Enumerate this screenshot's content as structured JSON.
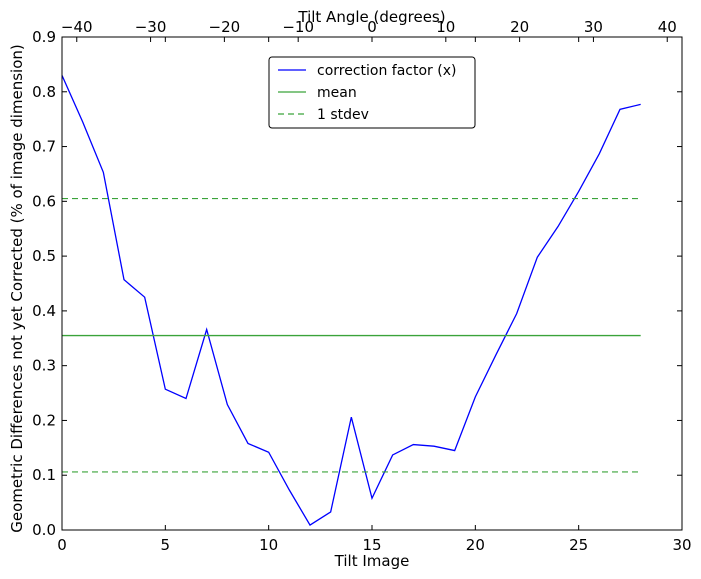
{
  "chart_data": {
    "type": "line",
    "title": "",
    "xlabel": "Tilt Image",
    "ylabel": "Geometric Differences not yet Corrected (% of image dimension)",
    "top_xlabel": "Tilt Angle (degrees)",
    "xlim": [
      0,
      30
    ],
    "ylim": [
      0,
      0.9
    ],
    "xticks": [
      0,
      5,
      10,
      15,
      20,
      25,
      30
    ],
    "yticks": [
      0.0,
      0.1,
      0.2,
      0.3,
      0.4,
      0.5,
      0.6,
      0.7,
      0.8,
      0.9
    ],
    "top_xlim": [
      -42,
      42
    ],
    "top_xticks": [
      -40,
      -30,
      -20,
      -10,
      0,
      10,
      20,
      30,
      40
    ],
    "grid": false,
    "legend_placement": "upper-center",
    "series": [
      {
        "name": "correction factor (x)",
        "color": "#0000ff",
        "style": "solid",
        "x": [
          0,
          1,
          2,
          3,
          4,
          5,
          6,
          7,
          8,
          9,
          10,
          11,
          12,
          13,
          14,
          15,
          16,
          17,
          18,
          19,
          20,
          21,
          22,
          23,
          24,
          25,
          26,
          27,
          28
        ],
        "values": [
          0.83,
          0.745,
          0.653,
          0.457,
          0.425,
          0.257,
          0.24,
          0.366,
          0.229,
          0.158,
          0.142,
          0.073,
          0.009,
          0.033,
          0.206,
          0.058,
          0.137,
          0.156,
          0.153,
          0.145,
          0.243,
          0.32,
          0.395,
          0.498,
          0.554,
          0.618,
          0.687,
          0.768,
          0.777
        ]
      },
      {
        "name": "mean",
        "color": "#3aa33a",
        "style": "solid",
        "x": [
          0,
          28
        ],
        "values": [
          0.355,
          0.355
        ]
      },
      {
        "name": "1 stdev",
        "color": "#3aa33a",
        "style": "dashed",
        "x": [
          0,
          28
        ],
        "values": [
          0.605,
          0.605
        ]
      },
      {
        "name": "",
        "color": "#3aa33a",
        "style": "dashed",
        "x": [
          0,
          28
        ],
        "values": [
          0.106,
          0.106
        ]
      }
    ]
  }
}
